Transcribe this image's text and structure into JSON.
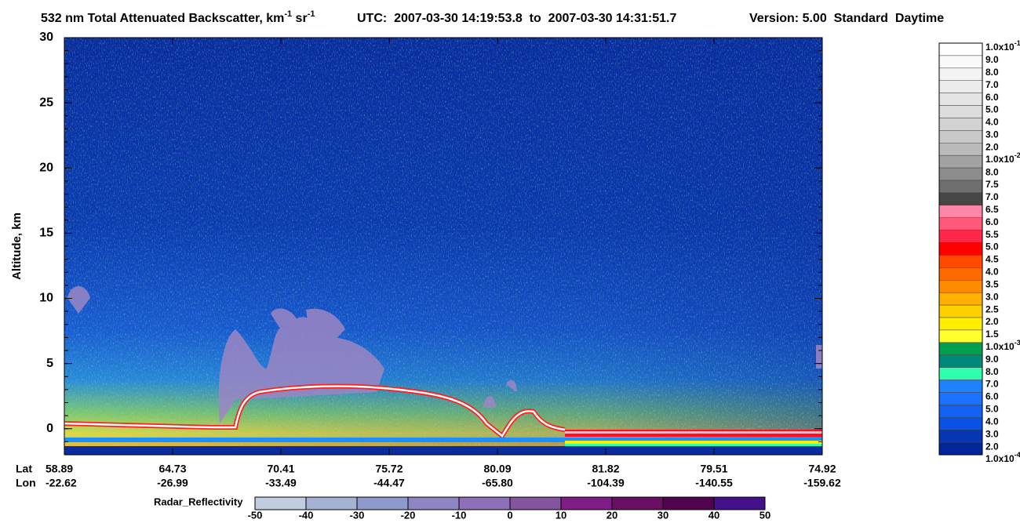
{
  "chart_data": {
    "type": "heatmap",
    "title": [
      "532 nm Total Attenuated Backscatter, km",
      "-1",
      " sr",
      "-1"
    ],
    "subtitle": "UTC:  2007-03-30 14:19:53.8  to  2007-03-30 14:31:51.7",
    "version": "Version: 5.00  Standard  Daytime",
    "y_label": "Altitude, km",
    "ylim": [
      -2,
      30
    ],
    "yticks": [
      0,
      5,
      10,
      15,
      20,
      25,
      30
    ],
    "x_rows": [
      {
        "name": "Lat",
        "labels": [
          "58.89",
          "64.73",
          "70.41",
          "75.72",
          "80.09",
          "81.82",
          "79.51",
          "74.92"
        ]
      },
      {
        "name": "Lon",
        "labels": [
          "-22.62",
          "-26.99",
          "-33.49",
          "-44.47",
          "-65.80",
          "-104.39",
          "-140.55",
          "-159.62"
        ]
      }
    ],
    "colorbar": {
      "labels": [
        {
          "text": "1.0x10",
          "sup": "-1"
        },
        "9.0",
        "8.0",
        "7.0",
        "6.0",
        "5.0",
        "4.0",
        "3.0",
        "2.0",
        {
          "text": "1.0x10",
          "sup": "-2"
        },
        "8.0",
        "7.5",
        "7.0",
        "6.5",
        "6.0",
        "5.5",
        "5.0",
        "4.5",
        "4.0",
        "3.5",
        "3.0",
        "2.5",
        "2.0",
        "1.5",
        {
          "text": "1.0x10",
          "sup": "-3"
        },
        "9.0",
        "8.0",
        "7.0",
        "6.0",
        "5.0",
        "4.0",
        "3.0",
        "2.0",
        {
          "text": "1.0x10",
          "sup": "-4"
        }
      ],
      "colors": [
        "#ffffff",
        "#f9f9f9",
        "#f3f3f3",
        "#ececec",
        "#e4e4e4",
        "#dcdcdc",
        "#d2d2d2",
        "#c8c8c8",
        "#bababa",
        "#a2a2a2",
        "#8c8c8c",
        "#6e6e6e",
        "#464646",
        "#ff86a6",
        "#ff5878",
        "#ff2848",
        "#ff0000",
        "#ff4a00",
        "#ff6a00",
        "#ff8c00",
        "#ffb000",
        "#ffd000",
        "#ffee00",
        "#ffff30",
        "#00a050",
        "#00887a",
        "#30ffb0",
        "#1e82ff",
        "#1a72ff",
        "#1462f4",
        "#0a52e6",
        "#0636b4",
        "#04249a"
      ]
    },
    "radar": {
      "label": "Radar_Reflectivity",
      "xlim": [
        -50,
        50
      ],
      "xticks": [
        -50,
        -40,
        -30,
        -20,
        -10,
        0,
        10,
        20,
        30,
        40,
        50
      ],
      "colors": [
        "#c0cce0",
        "#a4b2d4",
        "#8e9acb",
        "#8e86c4",
        "#8c70b8",
        "#84549e",
        "#801c86",
        "#6a1064",
        "#50044e",
        "#44108a"
      ]
    }
  }
}
